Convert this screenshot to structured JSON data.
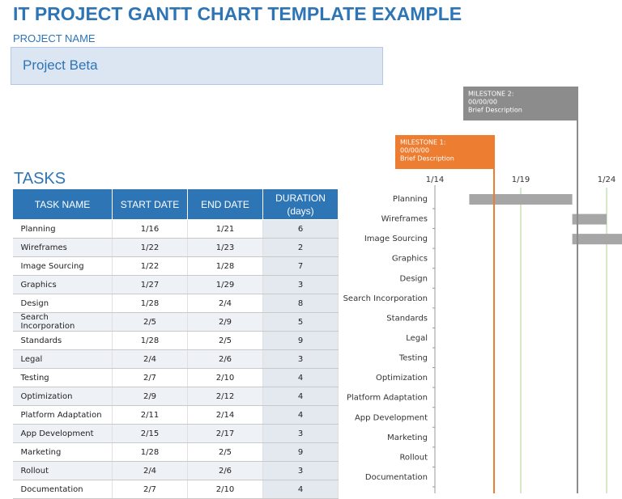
{
  "header": {
    "title": "IT PROJECT GANTT CHART TEMPLATE EXAMPLE",
    "project_label": "PROJECT NAME",
    "project_name": "Project Beta"
  },
  "tasks_label": "TASKS",
  "table": {
    "columns": [
      "TASK NAME",
      "START DATE",
      "END DATE",
      "DURATION\n(days)"
    ],
    "rows": [
      [
        "Planning",
        "1/16",
        "1/21",
        6
      ],
      [
        "Wireframes",
        "1/22",
        "1/23",
        2
      ],
      [
        "Image Sourcing",
        "1/22",
        "1/28",
        7
      ],
      [
        "Graphics",
        "1/27",
        "1/29",
        3
      ],
      [
        "Design",
        "1/28",
        "2/4",
        8
      ],
      [
        "Search Incorporation",
        "2/5",
        "2/9",
        5
      ],
      [
        "Standards",
        "1/28",
        "2/5",
        9
      ],
      [
        "Legal",
        "2/4",
        "2/6",
        3
      ],
      [
        "Testing",
        "2/7",
        "2/10",
        4
      ],
      [
        "Optimization",
        "2/9",
        "2/12",
        4
      ],
      [
        "Platform Adaptation",
        "2/11",
        "2/14",
        4
      ],
      [
        "App Development",
        "2/15",
        "2/17",
        3
      ],
      [
        "Marketing",
        "1/28",
        "2/5",
        9
      ],
      [
        "Rollout",
        "2/4",
        "2/6",
        3
      ],
      [
        "Documentation",
        "2/7",
        "2/10",
        4
      ]
    ]
  },
  "gantt": {
    "ticks": [
      "1/14",
      "1/19",
      "1/24"
    ],
    "milestones": [
      {
        "title": "MILESTONE 1:",
        "date": "00/00/00",
        "description": "Brief Description",
        "color": "#ed7d31"
      },
      {
        "title": "MILESTONE 2:",
        "date": "00/00/00",
        "description": "Brief Description",
        "color": "#8c8c8c"
      }
    ]
  }
}
